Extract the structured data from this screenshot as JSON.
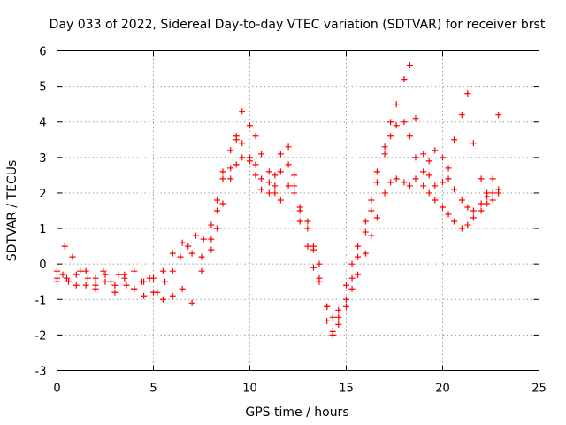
{
  "chart_data": {
    "type": "scatter",
    "title": "Day 033 of 2022, Sidereal Day-to-day VTEC variation (SDTVAR) for receiver brst",
    "xlabel": "GPS time / hours",
    "ylabel": "SDTVAR / TECUs",
    "xlim": [
      0,
      25
    ],
    "ylim": [
      -3,
      6
    ],
    "xticks": [
      0,
      5,
      10,
      15,
      20,
      25
    ],
    "yticks": [
      -3,
      -2,
      -1,
      0,
      1,
      2,
      3,
      4,
      5,
      6
    ],
    "grid": true,
    "legend": "none",
    "marker": "plus",
    "series": [
      {
        "name": "SDTVAR",
        "color": "#ff0000",
        "x": [
          0.0,
          0.3,
          0.6,
          1.0,
          1.5,
          2.0,
          2.5,
          3.0,
          3.5,
          4.0,
          4.5,
          5.0,
          5.5,
          6.0,
          6.5,
          7.0,
          7.5,
          8.0,
          8.3,
          8.6,
          9.0,
          9.3,
          9.6,
          10.0,
          10.3,
          10.6,
          11.0,
          11.3,
          11.6,
          12.0,
          12.3,
          12.6,
          13.0,
          13.3,
          13.6,
          14.0,
          14.3,
          14.6,
          15.0,
          15.3,
          15.6,
          16.0,
          16.3,
          16.6,
          17.0,
          17.3,
          17.6,
          18.0,
          18.3,
          18.6,
          19.0,
          19.3,
          19.6,
          20.0,
          20.3,
          20.6,
          21.0,
          21.3,
          21.6,
          22.0,
          22.3,
          22.6,
          22.9
        ],
        "y": [
          -0.4,
          -0.3,
          -0.5,
          -0.3,
          -0.6,
          -0.4,
          -0.5,
          -0.6,
          -0.4,
          -0.2,
          -0.5,
          -0.4,
          -0.2,
          0.3,
          0.6,
          0.3,
          0.2,
          0.7,
          1.5,
          2.6,
          3.2,
          3.5,
          3.4,
          3.0,
          2.8,
          2.4,
          2.3,
          2.5,
          3.1,
          3.3,
          2.5,
          1.6,
          1.2,
          0.4,
          -0.4,
          -1.6,
          -1.9,
          -1.5,
          -1.0,
          -0.4,
          0.2,
          0.9,
          1.5,
          2.3,
          3.1,
          3.6,
          3.9,
          4.0,
          3.6,
          3.0,
          2.6,
          2.9,
          3.2,
          3.0,
          2.4,
          2.1,
          1.8,
          1.6,
          1.5,
          1.7,
          1.9,
          2.0,
          2.1
        ]
      },
      {
        "name": "SDTVAR",
        "color": "#ff0000",
        "x": [
          0.0,
          0.5,
          1.0,
          1.5,
          2.0,
          2.5,
          3.0,
          3.5,
          4.0,
          4.5,
          5.0,
          5.5,
          6.0,
          6.5,
          7.0,
          7.5,
          8.0,
          8.3,
          8.6,
          9.0,
          9.3,
          9.6,
          10.0,
          10.3,
          10.6,
          11.0,
          11.3,
          11.6,
          12.0,
          12.3,
          12.6,
          13.0,
          13.3,
          13.6,
          14.0,
          14.3,
          14.6,
          15.0,
          15.3,
          15.6,
          16.0,
          16.3,
          16.6,
          17.0,
          17.3,
          17.6,
          18.0,
          18.3,
          18.6,
          19.0,
          19.3,
          19.6,
          20.0,
          20.3,
          20.6,
          21.0,
          21.3,
          21.6,
          22.0,
          22.3,
          22.6,
          22.9
        ],
        "y": [
          -0.2,
          -0.4,
          -0.6,
          -0.2,
          -0.7,
          -0.3,
          -0.8,
          -0.3,
          -0.7,
          -0.9,
          -0.8,
          -1.0,
          -0.9,
          -0.7,
          -1.1,
          -0.2,
          0.4,
          1.0,
          1.7,
          2.4,
          2.8,
          3.0,
          2.9,
          2.5,
          2.1,
          2.0,
          2.2,
          2.6,
          2.8,
          2.2,
          1.2,
          0.5,
          -0.1,
          -0.5,
          -1.2,
          -2.0,
          -1.7,
          -1.2,
          -0.7,
          -0.3,
          0.3,
          0.8,
          1.3,
          2.0,
          2.3,
          2.4,
          2.3,
          2.2,
          2.4,
          2.2,
          2.0,
          1.8,
          1.6,
          1.4,
          1.2,
          1.0,
          1.1,
          1.3,
          1.5,
          1.7,
          1.8,
          2.0
        ]
      },
      {
        "name": "SDTVAR",
        "color": "#ff0000",
        "x": [
          0.0,
          0.4,
          0.8,
          1.2,
          1.6,
          2.0,
          2.4,
          2.8,
          3.2,
          3.6,
          4.0,
          4.4,
          4.8,
          5.2,
          5.6,
          6.0,
          6.4,
          6.8,
          7.2,
          7.6,
          8.0,
          8.3,
          8.6,
          9.0,
          9.3,
          9.6,
          10.0,
          10.3,
          10.6,
          11.0,
          11.3,
          11.6,
          12.0,
          12.3,
          12.6,
          13.0,
          13.3,
          13.6,
          14.0,
          14.3,
          14.6,
          15.0,
          15.3,
          15.6,
          16.0,
          16.3,
          16.6,
          17.0,
          17.3,
          17.6,
          18.0,
          18.3,
          18.6,
          19.0,
          19.3,
          19.6,
          20.0,
          20.3,
          20.6,
          21.0,
          21.3,
          21.6,
          22.0,
          22.3,
          22.6,
          22.9
        ],
        "y": [
          -0.5,
          0.5,
          0.2,
          -0.2,
          -0.4,
          -0.6,
          -0.2,
          -0.5,
          -0.3,
          -0.6,
          -0.7,
          -0.5,
          -0.4,
          -0.8,
          -0.5,
          -0.2,
          0.2,
          0.5,
          0.8,
          0.7,
          1.1,
          1.8,
          2.4,
          2.7,
          3.6,
          4.3,
          3.9,
          3.6,
          3.1,
          2.6,
          2.0,
          1.8,
          2.2,
          2.0,
          1.5,
          1.0,
          0.5,
          0.0,
          -1.2,
          -1.5,
          -1.3,
          -0.6,
          0.0,
          0.5,
          1.2,
          1.8,
          2.6,
          3.3,
          4.0,
          4.5,
          5.2,
          5.6,
          4.1,
          3.1,
          2.5,
          2.2,
          2.3,
          2.7,
          3.5,
          4.2,
          4.8,
          3.4,
          2.4,
          2.0,
          2.4,
          4.2
        ]
      }
    ]
  }
}
